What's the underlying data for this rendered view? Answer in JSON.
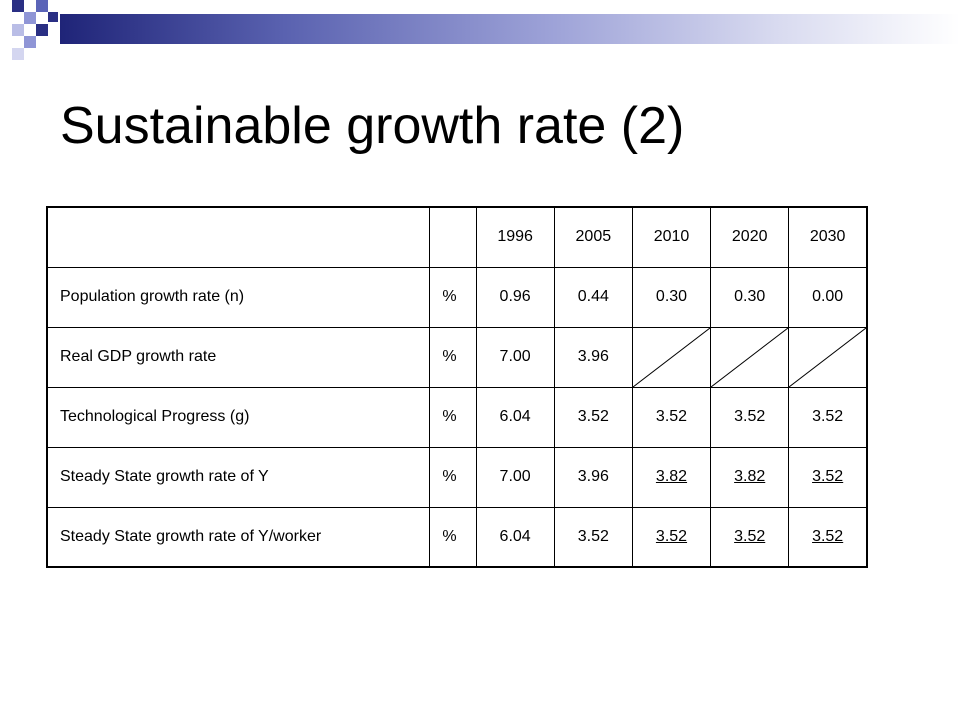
{
  "slide": {
    "title": "Sustainable growth rate (2)"
  },
  "table": {
    "header": {
      "label": "",
      "unit": "",
      "years": [
        "1996",
        "2005",
        "2010",
        "2020",
        "2030"
      ]
    },
    "rows": [
      {
        "label": "Population growth rate (n)",
        "unit": "%",
        "values": [
          "0.96",
          "0.44",
          "0.30",
          "0.30",
          "0.00"
        ]
      },
      {
        "label": "Real GDP growth rate",
        "unit": "%",
        "values": [
          "7.00",
          "3.96",
          "",
          "",
          ""
        ]
      },
      {
        "label": "Technological Progress (g)",
        "unit": "%",
        "values": [
          "6.04",
          "3.52",
          "3.52",
          "3.52",
          "3.52"
        ]
      },
      {
        "label": "Steady State growth rate of Y",
        "unit": "%",
        "values": [
          "7.00",
          "3.96",
          "3.82",
          "3.82",
          "3.52"
        ]
      },
      {
        "label": "Steady State growth rate of Y/worker",
        "unit": "%",
        "values": [
          "6.04",
          "3.52",
          "3.52",
          "3.52",
          "3.52"
        ]
      }
    ]
  }
}
